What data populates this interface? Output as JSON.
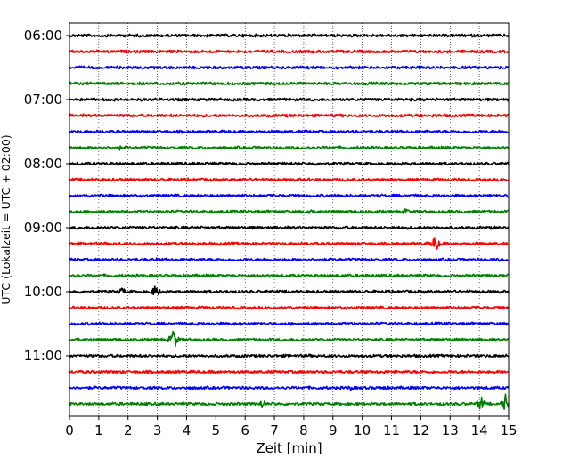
{
  "chart_data": {
    "type": "line",
    "xlabel": "Zeit  [min]",
    "ylabel": "UTC (Lokalzeit = UTC + 02:00)",
    "xlim": [
      0,
      15
    ],
    "x_ticks": [
      0,
      1,
      2,
      3,
      4,
      5,
      6,
      7,
      8,
      9,
      10,
      11,
      12,
      13,
      14,
      15
    ],
    "y_ticks": [
      {
        "label": "06:00",
        "row": 0
      },
      {
        "label": "07:00",
        "row": 4
      },
      {
        "label": "08:00",
        "row": 8
      },
      {
        "label": "09:00",
        "row": 12
      },
      {
        "label": "10:00",
        "row": 16
      },
      {
        "label": "11:00",
        "row": 20
      }
    ],
    "grid": "vertical dotted at each minute",
    "row_colors": [
      "#000000",
      "#ff0000",
      "#0000ff",
      "#008000"
    ],
    "traces": [
      {
        "start": "06:00",
        "events": []
      },
      {
        "start": "06:15",
        "events": [
          {
            "minute": 10.0,
            "amplitude": 0.15
          }
        ]
      },
      {
        "start": "06:30",
        "events": []
      },
      {
        "start": "06:45",
        "events": [
          {
            "minute": 7.0,
            "amplitude": 0.15
          }
        ]
      },
      {
        "start": "07:00",
        "events": [
          {
            "minute": 2.5,
            "amplitude": 0.15
          }
        ]
      },
      {
        "start": "07:15",
        "events": [
          {
            "minute": 12.5,
            "amplitude": 0.2
          }
        ]
      },
      {
        "start": "07:30",
        "events": []
      },
      {
        "start": "07:45",
        "events": [
          {
            "minute": 1.7,
            "amplitude": 0.2
          }
        ]
      },
      {
        "start": "08:00",
        "events": [
          {
            "minute": 7.6,
            "amplitude": 0.15
          }
        ]
      },
      {
        "start": "08:15",
        "events": []
      },
      {
        "start": "08:30",
        "events": []
      },
      {
        "start": "08:45",
        "events": [
          {
            "minute": 8.2,
            "amplitude": 0.25
          },
          {
            "minute": 11.5,
            "amplitude": 0.35
          }
        ]
      },
      {
        "start": "09:00",
        "events": []
      },
      {
        "start": "09:15",
        "events": [
          {
            "minute": 12.5,
            "amplitude": 0.75
          }
        ]
      },
      {
        "start": "09:30",
        "events": [
          {
            "minute": 3.0,
            "amplitude": 0.15
          }
        ]
      },
      {
        "start": "09:45",
        "events": []
      },
      {
        "start": "10:00",
        "events": [
          {
            "minute": 1.8,
            "amplitude": 0.35
          },
          {
            "minute": 2.95,
            "amplitude": 0.6
          }
        ]
      },
      {
        "start": "10:15",
        "events": []
      },
      {
        "start": "10:30",
        "events": []
      },
      {
        "start": "10:45",
        "events": [
          {
            "minute": 3.55,
            "amplitude": 1.0
          }
        ]
      },
      {
        "start": "11:00",
        "events": [
          {
            "minute": 7.8,
            "amplitude": 0.15
          }
        ]
      },
      {
        "start": "11:15",
        "events": []
      },
      {
        "start": "11:30",
        "events": [
          {
            "minute": 9.6,
            "amplitude": 0.25
          },
          {
            "minute": 10.7,
            "amplitude": 0.25
          }
        ]
      },
      {
        "start": "11:45",
        "events": [
          {
            "minute": 6.6,
            "amplitude": 0.45
          },
          {
            "minute": 14.05,
            "amplitude": 0.7
          },
          {
            "minute": 14.9,
            "amplitude": 0.85
          }
        ]
      }
    ]
  }
}
